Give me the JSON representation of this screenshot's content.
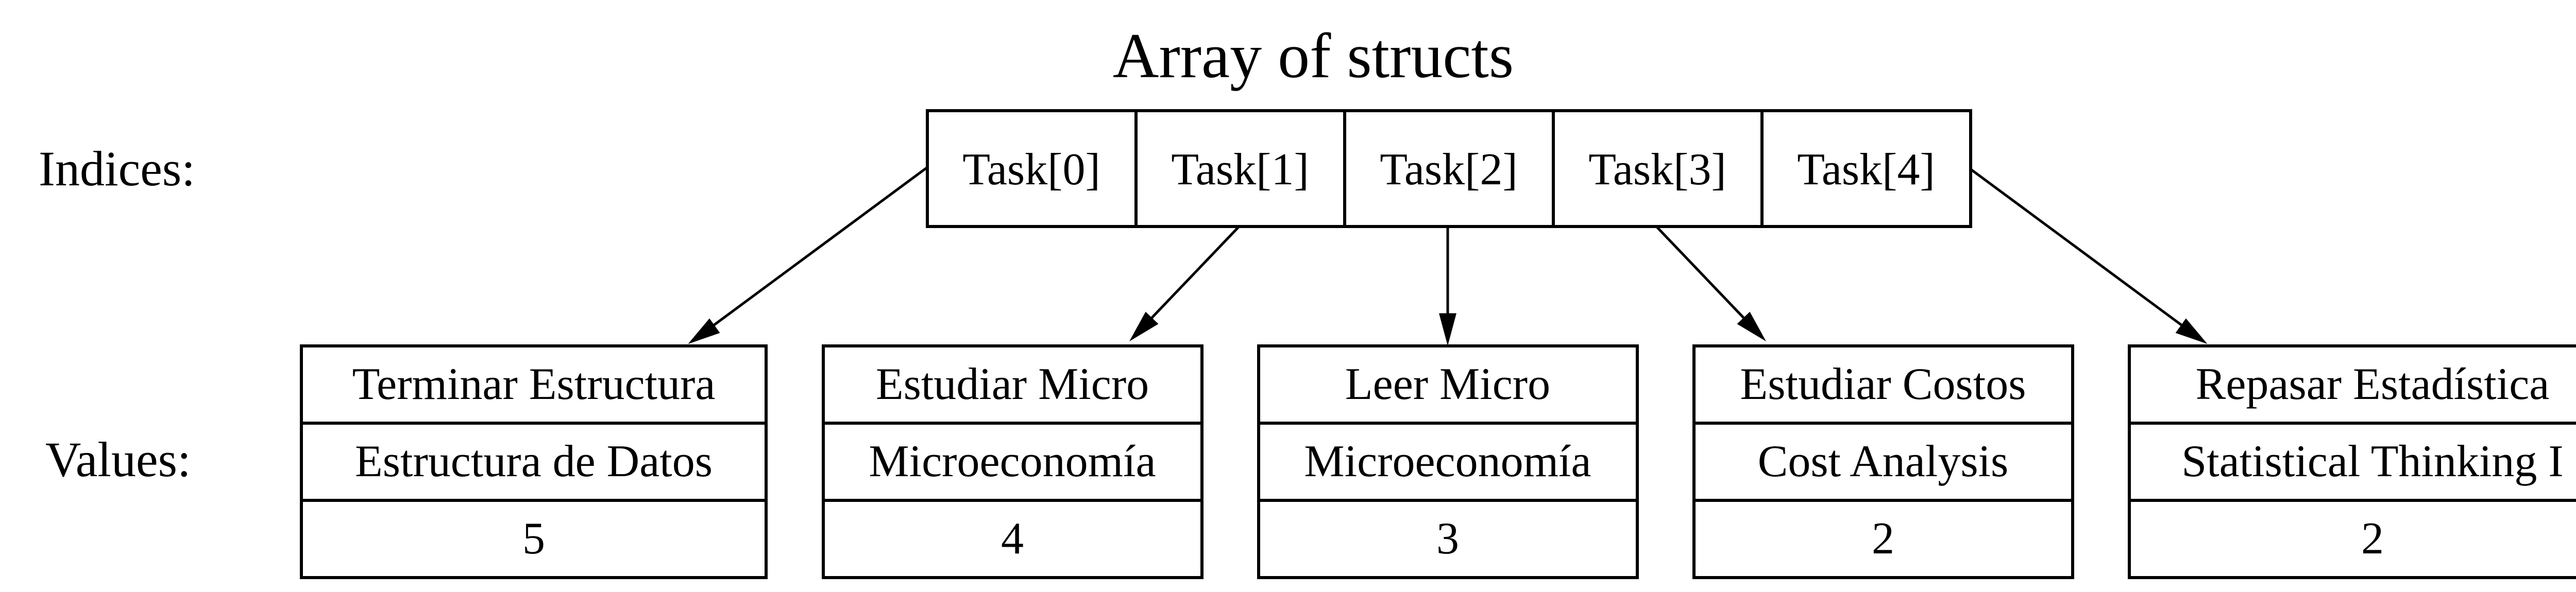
{
  "title": "Array of structs",
  "indices_label": "Indices:",
  "values_label": "Values:",
  "indices": [
    "Task[0]",
    "Task[1]",
    "Task[2]",
    "Task[3]",
    "Task[4]"
  ],
  "values": [
    {
      "name": "Terminar Estructura",
      "course": "Estructura de Datos",
      "priority": "5"
    },
    {
      "name": "Estudiar Micro",
      "course": "Microeconomía",
      "priority": "4"
    },
    {
      "name": "Leer Micro",
      "course": "Microeconomía",
      "priority": "3"
    },
    {
      "name": "Estudiar Costos",
      "course": "Cost Analysis",
      "priority": "2"
    },
    {
      "name": "Repasar Estadística",
      "course": "Statistical Thinking I",
      "priority": "2"
    }
  ]
}
